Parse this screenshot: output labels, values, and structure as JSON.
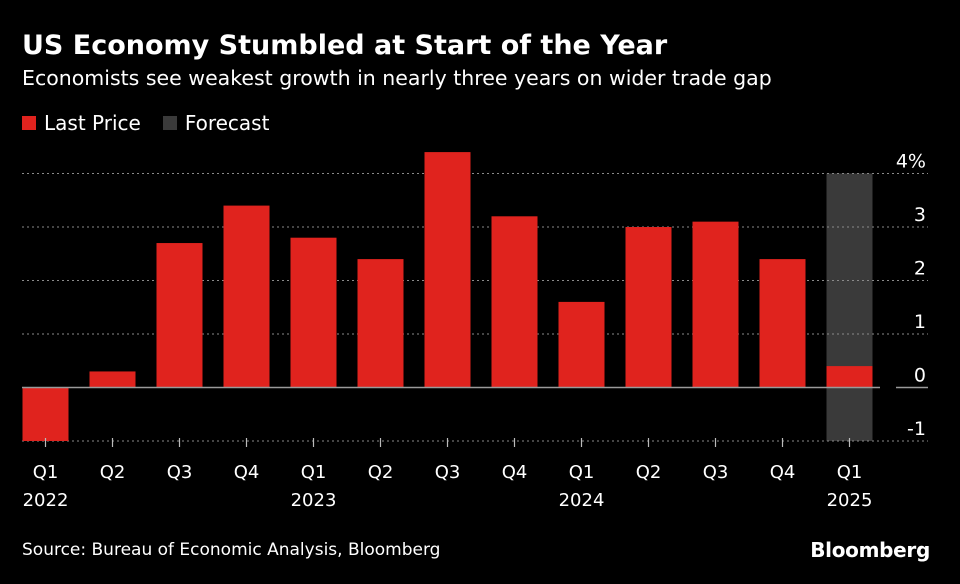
{
  "title": "US Economy Stumbled at Start of the Year",
  "subtitle": "Economists see weakest growth in nearly three years on wider trade gap",
  "legend": [
    {
      "label": "Last Price",
      "color": "#e0231e"
    },
    {
      "label": "Forecast",
      "color": "#3a3a3a"
    }
  ],
  "source": "Source: Bureau of Economic Analysis, Bloomberg",
  "brand": "Bloomberg",
  "chart_data": {
    "type": "bar",
    "title": "US Economy Stumbled at Start of the Year",
    "ylim": [
      -1,
      4
    ],
    "yticks": [
      {
        "value": 4,
        "label": "4%"
      },
      {
        "value": 3,
        "label": "3"
      },
      {
        "value": 2,
        "label": "2"
      },
      {
        "value": 1,
        "label": "1"
      },
      {
        "value": 0,
        "label": "0"
      },
      {
        "value": -1,
        "label": "-1"
      }
    ],
    "categories": [
      "Q1 2022",
      "Q2 2022",
      "Q3 2022",
      "Q4 2022",
      "Q1 2023",
      "Q2 2023",
      "Q3 2023",
      "Q4 2023",
      "Q1 2024",
      "Q2 2024",
      "Q3 2024",
      "Q4 2024",
      "Q1 2025"
    ],
    "tick_labels": [
      "Q1",
      "Q2",
      "Q3",
      "Q4",
      "Q1",
      "Q2",
      "Q3",
      "Q4",
      "Q1",
      "Q2",
      "Q3",
      "Q4",
      "Q1"
    ],
    "year_labels": [
      {
        "index": 0,
        "label": "2022"
      },
      {
        "index": 4,
        "label": "2023"
      },
      {
        "index": 8,
        "label": "2024"
      },
      {
        "index": 12,
        "label": "2025"
      }
    ],
    "series": [
      {
        "name": "Last Price",
        "color": "#e0231e",
        "values": [
          -1.0,
          0.3,
          2.7,
          3.4,
          2.8,
          2.4,
          4.4,
          3.2,
          1.6,
          3.0,
          3.1,
          2.4,
          0.4
        ]
      }
    ],
    "forecast": {
      "index": 12,
      "range": [
        -1,
        4
      ],
      "color": "#3a3a3a"
    },
    "grid": true
  }
}
